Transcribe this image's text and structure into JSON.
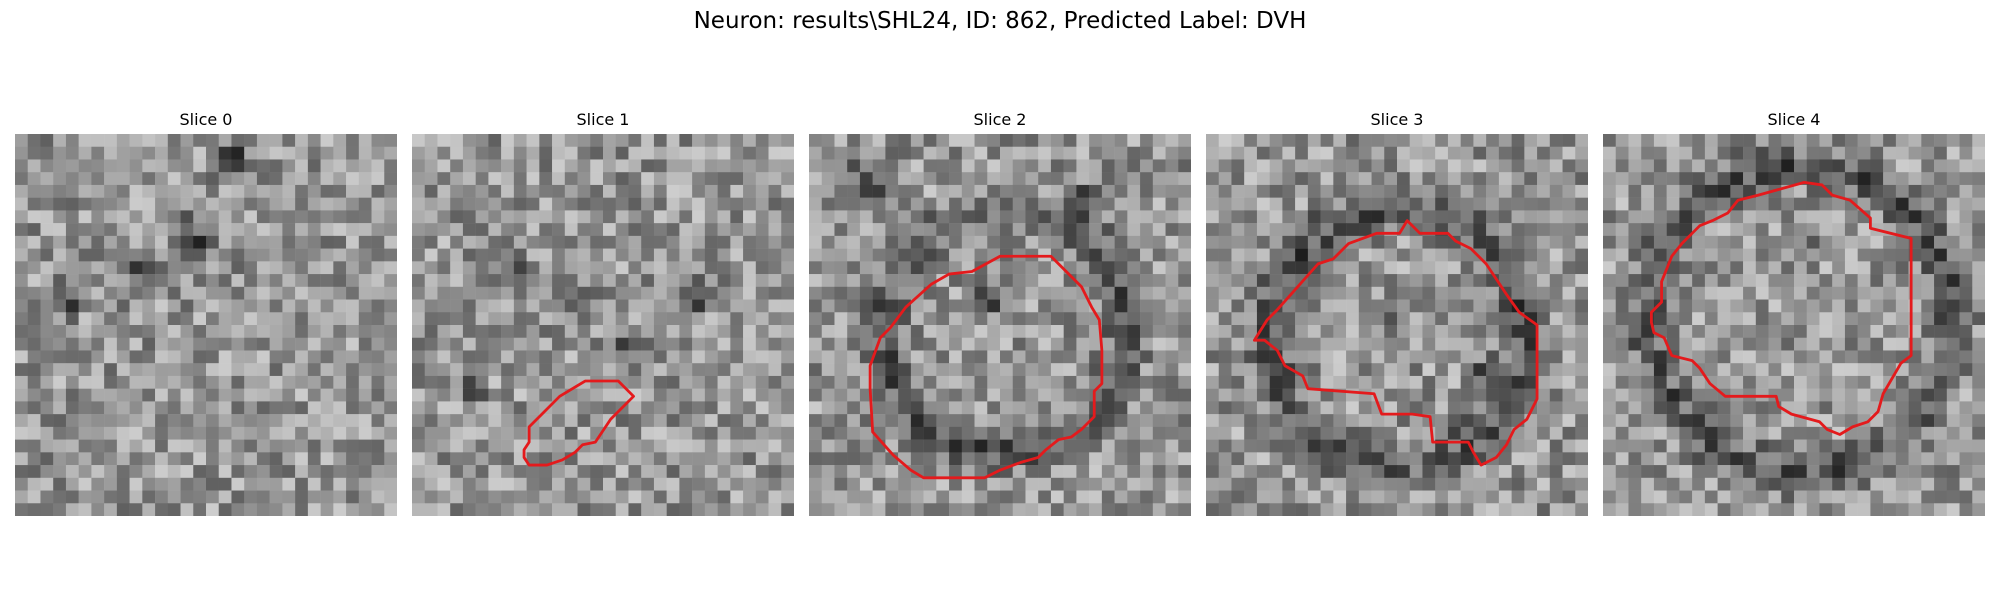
{
  "figure": {
    "title": "Neuron: results\\SHL24, ID: 862, Predicted Label: DVH"
  },
  "slices": [
    {
      "title": "Slice 0",
      "has_contour": false
    },
    {
      "title": "Slice 1",
      "has_contour": true
    },
    {
      "title": "Slice 2",
      "has_contour": true
    },
    {
      "title": "Slice 3",
      "has_contour": true
    },
    {
      "title": "Slice 4",
      "has_contour": true
    }
  ],
  "colors": {
    "contour": "#e41a1c"
  }
}
